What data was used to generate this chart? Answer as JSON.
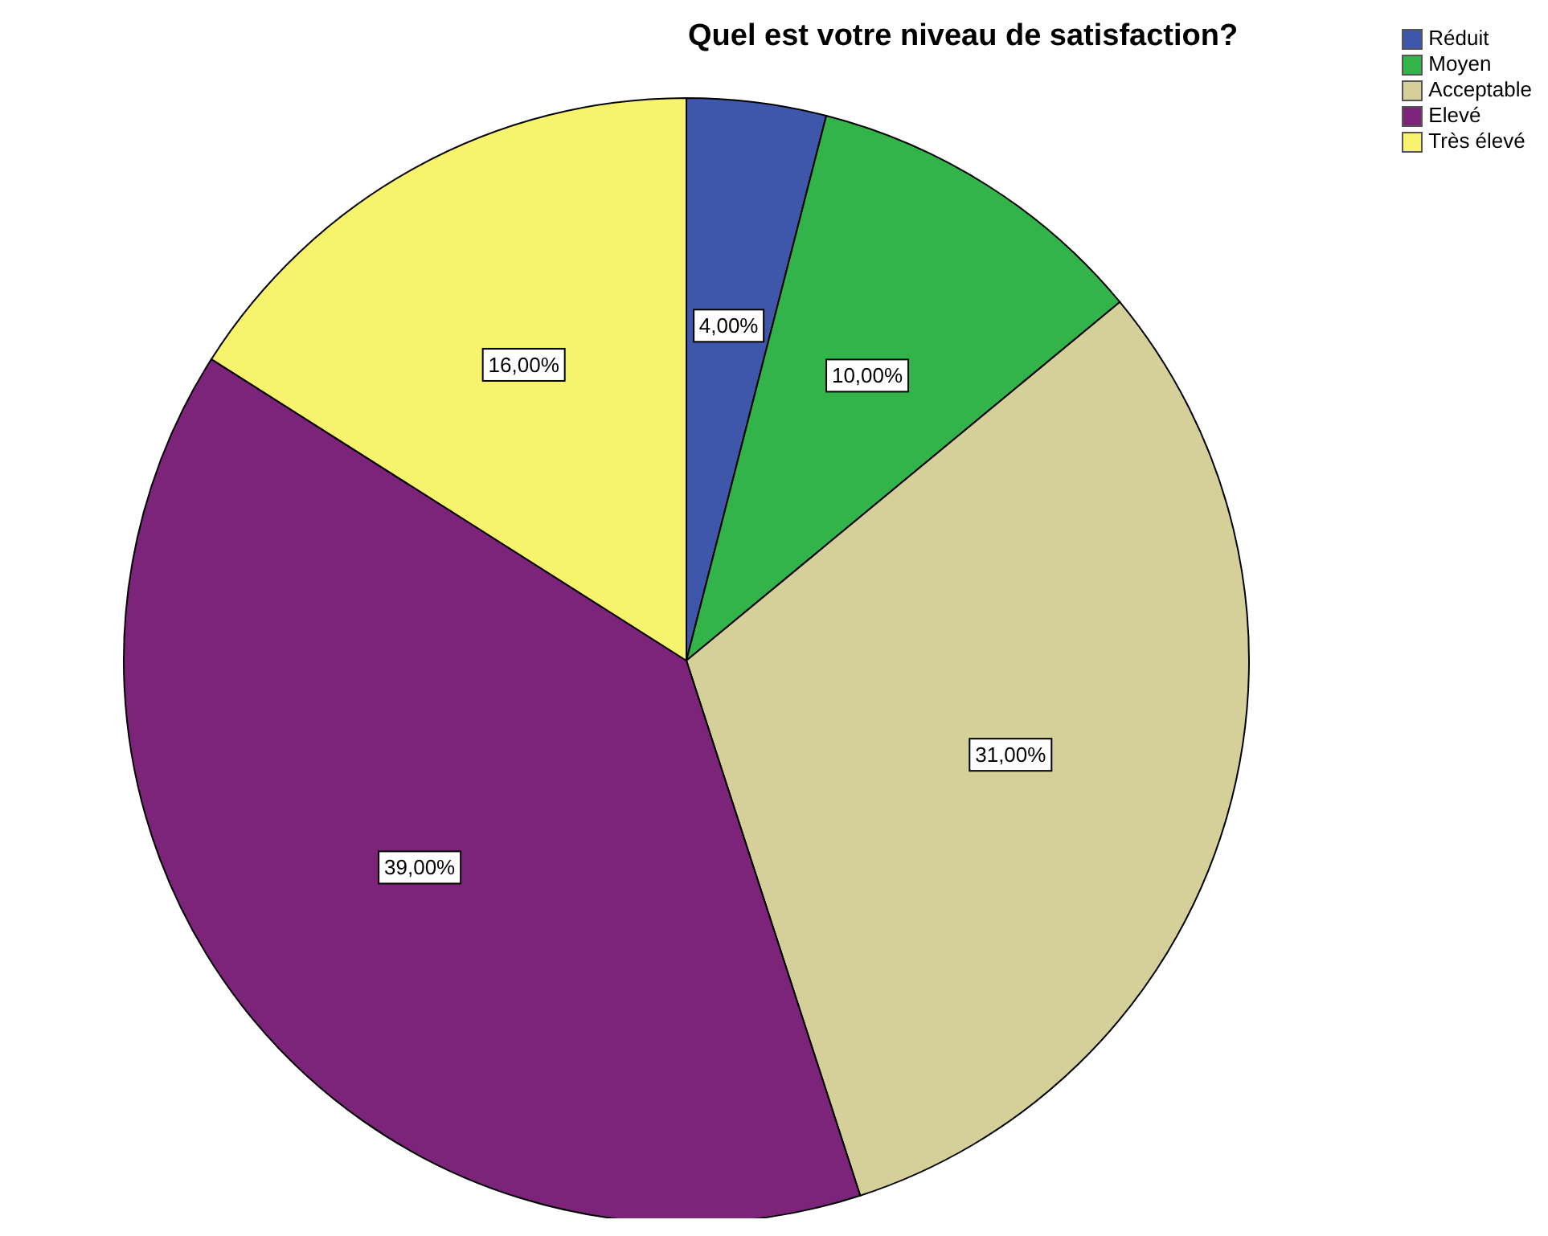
{
  "chart_data": {
    "type": "pie",
    "title": "Quel est votre niveau de satisfaction?",
    "categories": [
      "Réduit",
      "Moyen",
      "Acceptable",
      "Elevé",
      "Très élevé"
    ],
    "values": [
      4,
      10,
      31,
      39,
      16
    ],
    "value_labels": [
      "4,00%",
      "10,00%",
      "31,00%",
      "39,00%",
      "16,00%"
    ],
    "colors": [
      "#3f57ab",
      "#33b44a",
      "#d5cf9a",
      "#7c2479",
      "#f8f36c"
    ],
    "legend": "top right"
  }
}
